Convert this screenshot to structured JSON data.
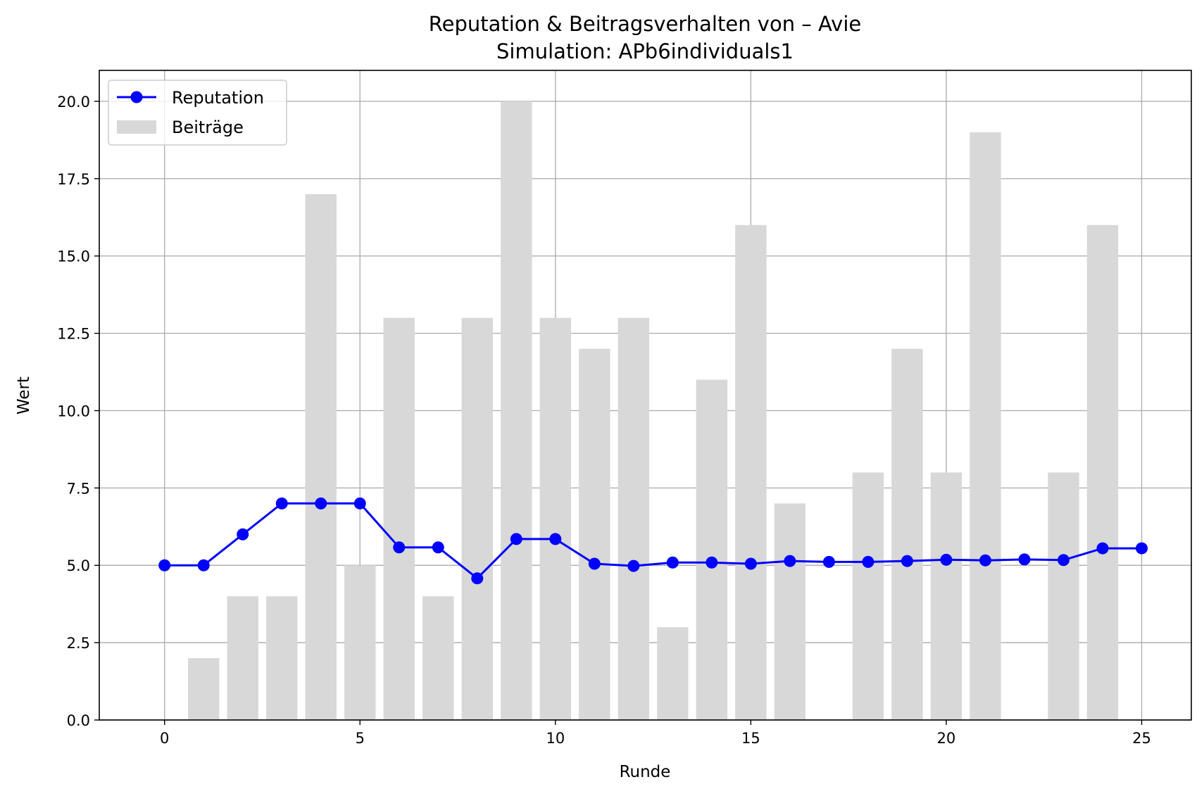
{
  "chart_data": {
    "type": "bar+line",
    "title": "Reputation & Beitragsverhalten von – Avie",
    "subtitle": "Simulation: APb6individuals1",
    "xlabel": "Runde",
    "ylabel": "Wert",
    "xlim": [
      -1.67,
      26.27
    ],
    "ylim": [
      0,
      21
    ],
    "xticks": [
      0,
      5,
      10,
      15,
      20,
      25
    ],
    "xtick_labels": [
      "0",
      "5",
      "10",
      "15",
      "20",
      "25"
    ],
    "yticks": [
      0,
      2.5,
      5,
      7.5,
      10,
      12.5,
      15,
      17.5,
      20
    ],
    "ytick_labels": [
      "0.0",
      "2.5",
      "5.0",
      "7.5",
      "10.0",
      "12.5",
      "15.0",
      "17.5",
      "20.0"
    ],
    "grid": true,
    "legend_position": "top-left",
    "series": [
      {
        "name": "Reputation",
        "kind": "line",
        "color": "#0000ff",
        "x": [
          0,
          1,
          2,
          3,
          4,
          5,
          6,
          7,
          8,
          9,
          10,
          11,
          12,
          13,
          14,
          15,
          16,
          17,
          18,
          19,
          20,
          21,
          22,
          23,
          24,
          25
        ],
        "values": [
          5.0,
          5.0,
          6.0,
          7.0,
          7.0,
          7.0,
          5.58,
          5.58,
          4.58,
          5.85,
          5.85,
          5.05,
          4.98,
          5.09,
          5.09,
          5.05,
          5.14,
          5.11,
          5.11,
          5.14,
          5.18,
          5.16,
          5.19,
          5.17,
          5.55,
          5.55
        ]
      },
      {
        "name": "Beiträge",
        "kind": "bar",
        "color": "#d8d8d8",
        "x": [
          0,
          1,
          2,
          3,
          4,
          5,
          6,
          7,
          8,
          9,
          10,
          11,
          12,
          13,
          14,
          15,
          16,
          17,
          18,
          19,
          20,
          21,
          22,
          23,
          24,
          25
        ],
        "values": [
          0,
          2,
          4,
          4,
          17,
          5,
          13,
          4,
          13,
          20,
          13,
          12,
          13,
          3,
          11,
          16,
          7,
          0,
          8,
          12,
          8,
          19,
          0,
          8,
          16,
          0
        ]
      }
    ]
  }
}
